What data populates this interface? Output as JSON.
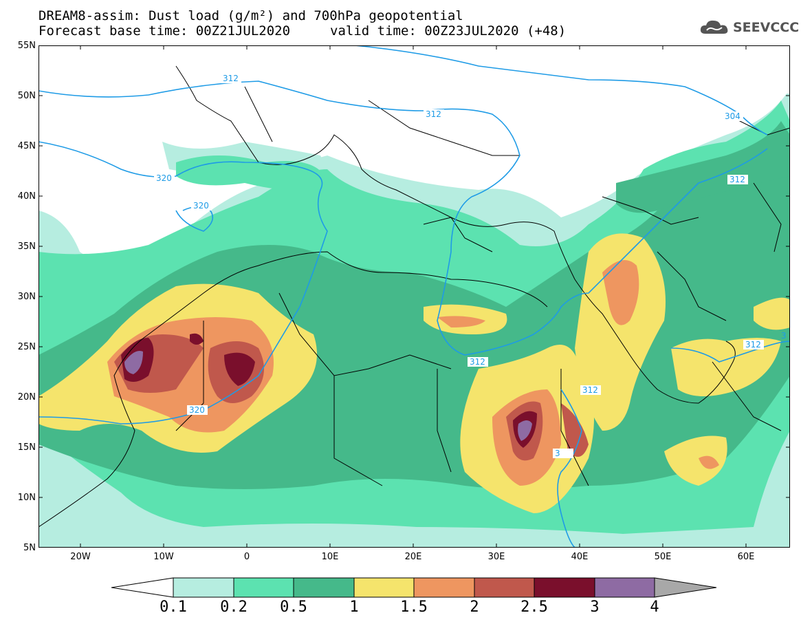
{
  "title": {
    "line1": "DREAM8-assim: Dust load (g/m²) and 700hPa geopotential",
    "line2": "Forecast base time: 00Z21JUL2020",
    "valid": "valid time: 00Z23JUL2020 (+48)"
  },
  "logo": {
    "text": "SEEVCCC",
    "icon": "cloud-icon"
  },
  "lat_labels": [
    "55N",
    "50N",
    "45N",
    "40N",
    "35N",
    "30N",
    "25N",
    "20N",
    "15N",
    "10N",
    "5N"
  ],
  "lon_labels": [
    "20W",
    "10W",
    "0",
    "10E",
    "20E",
    "30E",
    "40E",
    "50E",
    "60E"
  ],
  "contour_labels": [
    "312",
    "304",
    "320",
    "320",
    "320",
    "312",
    "312",
    "312",
    "312",
    "312",
    "3"
  ],
  "colorbar": {
    "labels": [
      "0.1",
      "0.2",
      "0.5",
      "1",
      "1.5",
      "2",
      "2.5",
      "3",
      "4"
    ],
    "colors": [
      "#b6ede0",
      "#5ce2b0",
      "#45b98a",
      "#f5e46c",
      "#ee9660",
      "#c0584c",
      "#7a0f2c",
      "#8e6ba3"
    ],
    "low_color": "#ffffff",
    "high_color": "#a8a8a8"
  },
  "palette": {
    "contour": "#1e9be6",
    "border": "#000000"
  }
}
